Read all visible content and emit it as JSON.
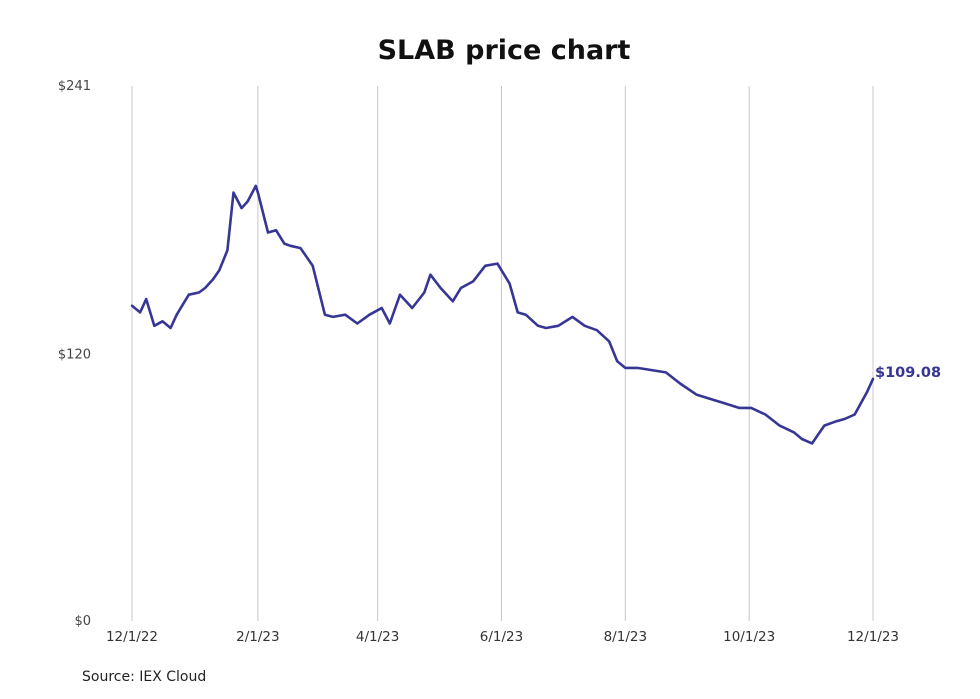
{
  "source": "Source: IEX Cloud",
  "colors": {
    "line": "#363694",
    "grid": "#c8c8c8",
    "label": "#363694"
  },
  "chart_data": {
    "type": "line",
    "title": "SLAB price chart",
    "xlabel": "",
    "ylabel": "",
    "ylim": [
      0,
      241
    ],
    "y_ticks": [
      0,
      120,
      241
    ],
    "y_tick_labels": [
      "$0",
      "$120",
      "$241"
    ],
    "x_ticks": [
      "2022-12-01",
      "2023-02-01",
      "2023-04-01",
      "2023-06-01",
      "2023-08-01",
      "2023-10-01",
      "2023-12-01"
    ],
    "x_tick_labels": [
      "12/1/22",
      "2/1/23",
      "4/1/23",
      "6/1/23",
      "8/1/23",
      "10/1/23",
      "12/1/23"
    ],
    "grid": "vertical lines at x ticks",
    "end_label": "$109.08",
    "series": [
      {
        "x": [
          "2022-12-01",
          "2022-12-05",
          "2022-12-08",
          "2022-12-12",
          "2022-12-16",
          "2022-12-20",
          "2022-12-23",
          "2022-12-29",
          "2023-01-03",
          "2023-01-06",
          "2023-01-10",
          "2023-01-13",
          "2023-01-17",
          "2023-01-20",
          "2023-01-24",
          "2023-01-27",
          "2023-01-31",
          "2023-02-01",
          "2023-02-06",
          "2023-02-10",
          "2023-02-14",
          "2023-02-17",
          "2023-02-22",
          "2023-02-28",
          "2023-03-06",
          "2023-03-10",
          "2023-03-16",
          "2023-03-22",
          "2023-03-28",
          "2023-04-03",
          "2023-04-07",
          "2023-04-12",
          "2023-04-18",
          "2023-04-24",
          "2023-04-27",
          "2023-05-02",
          "2023-05-08",
          "2023-05-12",
          "2023-05-18",
          "2023-05-24",
          "2023-05-30",
          "2023-06-05",
          "2023-06-09",
          "2023-06-13",
          "2023-06-19",
          "2023-06-23",
          "2023-06-29",
          "2023-07-06",
          "2023-07-12",
          "2023-07-18",
          "2023-07-24",
          "2023-07-28",
          "2023-08-01",
          "2023-08-07",
          "2023-08-14",
          "2023-08-21",
          "2023-08-28",
          "2023-09-05",
          "2023-09-12",
          "2023-09-19",
          "2023-09-26",
          "2023-10-02",
          "2023-10-09",
          "2023-10-16",
          "2023-10-23",
          "2023-10-27",
          "2023-11-01",
          "2023-11-07",
          "2023-11-13",
          "2023-11-17",
          "2023-11-22",
          "2023-11-28",
          "2023-12-01"
        ],
        "values": [
          142,
          139,
          145,
          133,
          135,
          132,
          138,
          147,
          148,
          150,
          154,
          158,
          167,
          193,
          186,
          189,
          196,
          193,
          175,
          176,
          170,
          169,
          168,
          160,
          138,
          137,
          138,
          134,
          138,
          141,
          134,
          147,
          141,
          148,
          156,
          150,
          144,
          150,
          153,
          160,
          161,
          152,
          139,
          138,
          133,
          132,
          133,
          137,
          133,
          131,
          126,
          117,
          114,
          114,
          113,
          112,
          107,
          102,
          100,
          98,
          96,
          96,
          93,
          88,
          85,
          82,
          80,
          88,
          90,
          91,
          93,
          103,
          109.08
        ]
      }
    ]
  }
}
